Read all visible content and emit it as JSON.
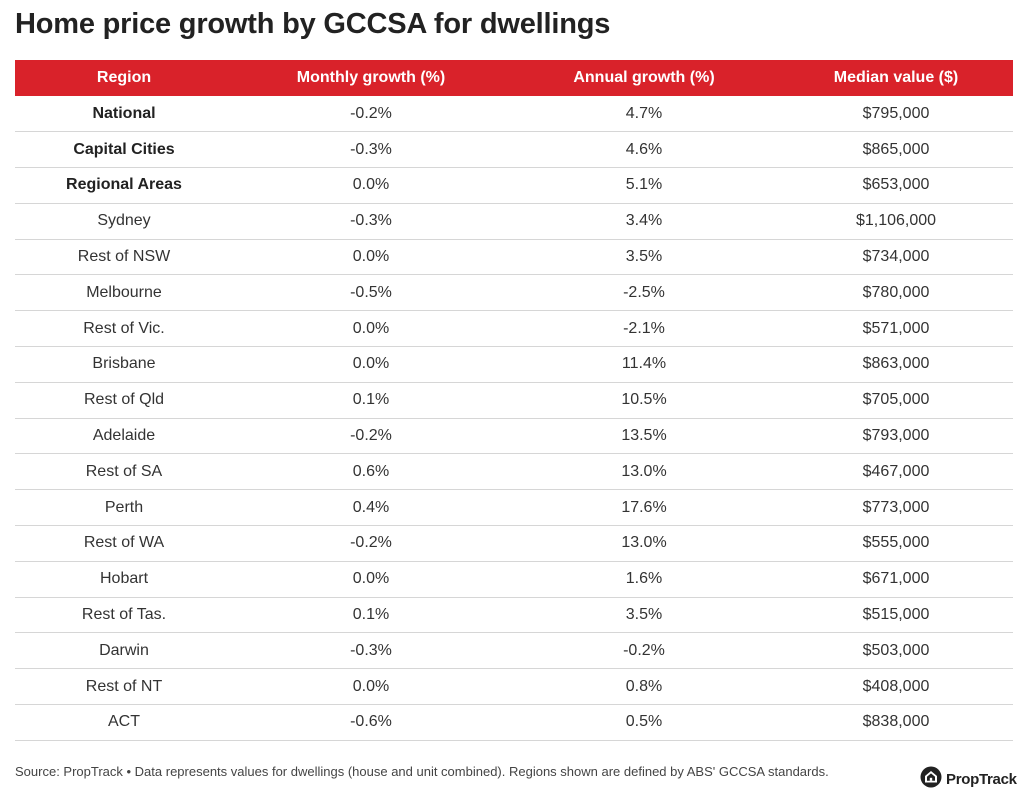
{
  "title": "Home price growth by GCCSA for dwellings",
  "chart_data": {
    "type": "table",
    "columns": [
      "Region",
      "Monthly growth (%)",
      "Annual growth (%)",
      "Median value ($)"
    ],
    "rows": [
      {
        "region": "National",
        "monthly": "-0.2%",
        "annual": "4.7%",
        "median": "$795,000",
        "bold": true
      },
      {
        "region": "Capital Cities",
        "monthly": "-0.3%",
        "annual": "4.6%",
        "median": "$865,000",
        "bold": true
      },
      {
        "region": "Regional Areas",
        "monthly": "0.0%",
        "annual": "5.1%",
        "median": "$653,000",
        "bold": true
      },
      {
        "region": "Sydney",
        "monthly": "-0.3%",
        "annual": "3.4%",
        "median": "$1,106,000",
        "bold": false
      },
      {
        "region": "Rest of NSW",
        "monthly": "0.0%",
        "annual": "3.5%",
        "median": "$734,000",
        "bold": false
      },
      {
        "region": "Melbourne",
        "monthly": "-0.5%",
        "annual": "-2.5%",
        "median": "$780,000",
        "bold": false
      },
      {
        "region": "Rest of Vic.",
        "monthly": "0.0%",
        "annual": "-2.1%",
        "median": "$571,000",
        "bold": false
      },
      {
        "region": "Brisbane",
        "monthly": "0.0%",
        "annual": "11.4%",
        "median": "$863,000",
        "bold": false
      },
      {
        "region": "Rest of Qld",
        "monthly": "0.1%",
        "annual": "10.5%",
        "median": "$705,000",
        "bold": false
      },
      {
        "region": "Adelaide",
        "monthly": "-0.2%",
        "annual": "13.5%",
        "median": "$793,000",
        "bold": false
      },
      {
        "region": "Rest of SA",
        "monthly": "0.6%",
        "annual": "13.0%",
        "median": "$467,000",
        "bold": false
      },
      {
        "region": "Perth",
        "monthly": "0.4%",
        "annual": "17.6%",
        "median": "$773,000",
        "bold": false
      },
      {
        "region": "Rest of WA",
        "monthly": "-0.2%",
        "annual": "13.0%",
        "median": "$555,000",
        "bold": false
      },
      {
        "region": "Hobart",
        "monthly": "0.0%",
        "annual": "1.6%",
        "median": "$671,000",
        "bold": false
      },
      {
        "region": "Rest of Tas.",
        "monthly": "0.1%",
        "annual": "3.5%",
        "median": "$515,000",
        "bold": false
      },
      {
        "region": "Darwin",
        "monthly": "-0.3%",
        "annual": "-0.2%",
        "median": "$503,000",
        "bold": false
      },
      {
        "region": "Rest of NT",
        "monthly": "0.0%",
        "annual": "0.8%",
        "median": "$408,000",
        "bold": false
      },
      {
        "region": "ACT",
        "monthly": "-0.6%",
        "annual": "0.5%",
        "median": "$838,000",
        "bold": false
      }
    ]
  },
  "footer": {
    "source": "Source: PropTrack • Data represents values for dwellings (house and unit combined). Regions shown are defined by ABS' GCCSA standards."
  },
  "logo": {
    "text": "PropTrack",
    "icon": "house-icon"
  },
  "colors": {
    "header_bg": "#d9222a",
    "header_text": "#ffffff",
    "row_border": "#d6d6d6"
  }
}
